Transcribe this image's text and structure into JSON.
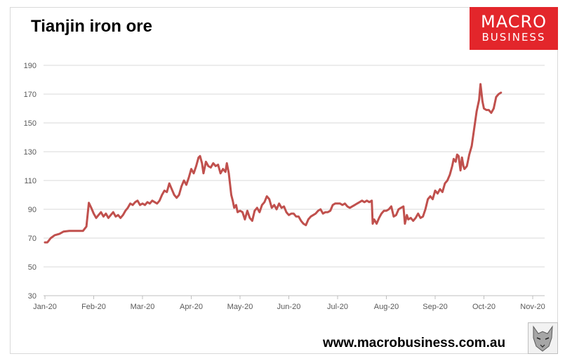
{
  "header": {
    "title": "Tianjin iron ore"
  },
  "logo": {
    "line1": "MACRO",
    "line2": "BUSINESS",
    "color": "#e3262b"
  },
  "footer": {
    "website": "www.macrobusiness.com.au"
  },
  "chart_data": {
    "type": "line",
    "title": "Tianjin iron ore",
    "xlabel": "",
    "ylabel": "",
    "ylim": [
      30,
      190
    ],
    "yticks": [
      30,
      50,
      70,
      90,
      110,
      130,
      150,
      170,
      190
    ],
    "xticks": [
      "Jan-20",
      "Feb-20",
      "Mar-20",
      "Apr-20",
      "May-20",
      "Jun-20",
      "Jul-20",
      "Aug-20",
      "Sep-20",
      "Oct-20",
      "Nov-20"
    ],
    "grid": true,
    "line_color": "#c0504d",
    "series": [
      {
        "name": "",
        "points": [
          [
            0.0,
            67
          ],
          [
            0.05,
            67
          ],
          [
            0.12,
            70
          ],
          [
            0.2,
            72
          ],
          [
            0.3,
            73
          ],
          [
            0.38,
            74.5
          ],
          [
            0.5,
            75
          ],
          [
            0.6,
            75
          ],
          [
            0.7,
            75
          ],
          [
            0.78,
            75
          ],
          [
            0.85,
            78
          ],
          [
            0.9,
            94.5
          ],
          [
            0.95,
            91
          ],
          [
            1.0,
            87
          ],
          [
            1.05,
            84
          ],
          [
            1.1,
            86
          ],
          [
            1.15,
            88
          ],
          [
            1.2,
            85
          ],
          [
            1.25,
            87
          ],
          [
            1.3,
            84
          ],
          [
            1.35,
            86
          ],
          [
            1.4,
            88
          ],
          [
            1.45,
            85
          ],
          [
            1.5,
            86
          ],
          [
            1.55,
            84
          ],
          [
            1.6,
            86
          ],
          [
            1.65,
            89
          ],
          [
            1.7,
            91
          ],
          [
            1.75,
            94
          ],
          [
            1.8,
            93
          ],
          [
            1.85,
            95
          ],
          [
            1.9,
            96
          ],
          [
            1.95,
            93
          ],
          [
            2.0,
            94
          ],
          [
            2.05,
            93
          ],
          [
            2.1,
            95
          ],
          [
            2.15,
            94
          ],
          [
            2.2,
            96
          ],
          [
            2.25,
            95
          ],
          [
            2.3,
            94
          ],
          [
            2.35,
            96
          ],
          [
            2.4,
            100
          ],
          [
            2.45,
            103
          ],
          [
            2.5,
            102
          ],
          [
            2.55,
            108
          ],
          [
            2.6,
            104
          ],
          [
            2.65,
            100
          ],
          [
            2.7,
            98
          ],
          [
            2.75,
            100
          ],
          [
            2.8,
            106
          ],
          [
            2.85,
            110
          ],
          [
            2.9,
            107
          ],
          [
            2.95,
            112
          ],
          [
            3.0,
            118
          ],
          [
            3.05,
            115
          ],
          [
            3.1,
            120
          ],
          [
            3.15,
            126
          ],
          [
            3.18,
            127
          ],
          [
            3.22,
            122
          ],
          [
            3.25,
            115
          ],
          [
            3.3,
            123
          ],
          [
            3.35,
            120
          ],
          [
            3.4,
            119
          ],
          [
            3.45,
            122
          ],
          [
            3.5,
            120
          ],
          [
            3.55,
            121
          ],
          [
            3.6,
            115
          ],
          [
            3.65,
            118
          ],
          [
            3.7,
            116
          ],
          [
            3.73,
            122
          ],
          [
            3.77,
            115
          ],
          [
            3.82,
            100
          ],
          [
            3.85,
            96
          ],
          [
            3.88,
            91
          ],
          [
            3.92,
            93
          ],
          [
            3.95,
            88
          ],
          [
            4.0,
            89
          ],
          [
            4.05,
            88
          ],
          [
            4.1,
            83
          ],
          [
            4.15,
            89
          ],
          [
            4.2,
            84
          ],
          [
            4.25,
            82
          ],
          [
            4.3,
            89
          ],
          [
            4.35,
            91
          ],
          [
            4.4,
            88
          ],
          [
            4.45,
            93
          ],
          [
            4.5,
            95
          ],
          [
            4.55,
            99
          ],
          [
            4.6,
            97
          ],
          [
            4.65,
            91
          ],
          [
            4.7,
            93
          ],
          [
            4.75,
            90
          ],
          [
            4.8,
            94
          ],
          [
            4.85,
            91
          ],
          [
            4.9,
            92
          ],
          [
            4.95,
            88
          ],
          [
            5.0,
            86
          ],
          [
            5.05,
            87
          ],
          [
            5.1,
            87
          ],
          [
            5.15,
            85
          ],
          [
            5.2,
            85
          ],
          [
            5.25,
            82
          ],
          [
            5.3,
            80
          ],
          [
            5.35,
            79
          ],
          [
            5.4,
            83
          ],
          [
            5.45,
            85
          ],
          [
            5.5,
            86
          ],
          [
            5.55,
            87
          ],
          [
            5.6,
            89
          ],
          [
            5.65,
            90
          ],
          [
            5.7,
            87
          ],
          [
            5.75,
            88
          ],
          [
            5.8,
            88
          ],
          [
            5.85,
            89
          ],
          [
            5.9,
            93
          ],
          [
            5.95,
            94
          ],
          [
            6.0,
            94
          ],
          [
            6.05,
            94
          ],
          [
            6.1,
            93
          ],
          [
            6.15,
            94
          ],
          [
            6.2,
            92
          ],
          [
            6.25,
            91
          ],
          [
            6.3,
            92
          ],
          [
            6.35,
            93
          ],
          [
            6.4,
            94
          ],
          [
            6.45,
            95
          ],
          [
            6.5,
            96
          ],
          [
            6.55,
            95
          ],
          [
            6.6,
            96
          ],
          [
            6.65,
            95
          ],
          [
            6.7,
            96
          ],
          [
            6.72,
            80
          ],
          [
            6.75,
            83
          ],
          [
            6.8,
            80
          ],
          [
            6.85,
            84
          ],
          [
            6.9,
            87
          ],
          [
            6.95,
            89
          ],
          [
            7.0,
            89
          ],
          [
            7.05,
            90
          ],
          [
            7.1,
            92
          ],
          [
            7.15,
            85
          ],
          [
            7.2,
            86
          ],
          [
            7.25,
            90
          ],
          [
            7.3,
            91
          ],
          [
            7.35,
            92
          ],
          [
            7.38,
            80
          ],
          [
            7.42,
            86
          ],
          [
            7.45,
            83
          ],
          [
            7.5,
            84
          ],
          [
            7.55,
            82
          ],
          [
            7.6,
            84
          ],
          [
            7.65,
            87
          ],
          [
            7.7,
            84
          ],
          [
            7.75,
            85
          ],
          [
            7.8,
            90
          ],
          [
            7.85,
            97
          ],
          [
            7.9,
            99
          ],
          [
            7.95,
            97
          ],
          [
            8.0,
            103
          ],
          [
            8.05,
            101
          ],
          [
            8.1,
            104
          ],
          [
            8.15,
            102
          ],
          [
            8.2,
            108
          ],
          [
            8.25,
            110
          ],
          [
            8.3,
            114
          ],
          [
            8.35,
            120
          ],
          [
            8.38,
            125
          ],
          [
            8.42,
            123
          ],
          [
            8.45,
            128
          ],
          [
            8.48,
            127
          ],
          [
            8.52,
            117
          ],
          [
            8.55,
            126
          ],
          [
            8.58,
            120
          ],
          [
            8.6,
            118
          ],
          [
            8.65,
            120
          ],
          [
            8.7,
            128
          ],
          [
            8.75,
            134
          ],
          [
            8.8,
            146
          ],
          [
            8.85,
            158
          ],
          [
            8.9,
            166
          ],
          [
            8.93,
            177
          ],
          [
            8.97,
            165
          ],
          [
            9.0,
            160
          ],
          [
            9.05,
            159
          ],
          [
            9.1,
            159
          ],
          [
            9.15,
            157
          ],
          [
            9.2,
            160
          ],
          [
            9.25,
            168
          ],
          [
            9.3,
            170
          ],
          [
            9.35,
            171
          ]
        ]
      }
    ]
  }
}
